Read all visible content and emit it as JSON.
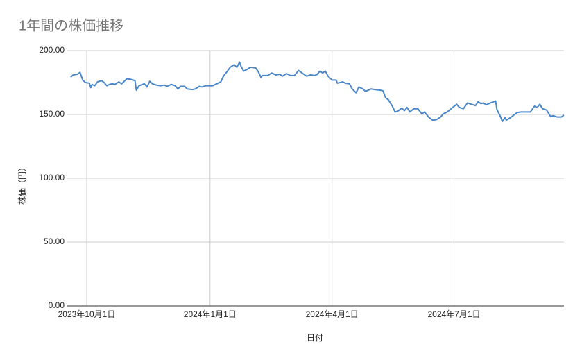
{
  "chart_data": {
    "type": "line",
    "title": "1年間の株価推移",
    "x_label": "日付",
    "y_label": "株価（円）",
    "x": [
      "2023-09-19",
      "2023-09-21",
      "2023-09-24",
      "2023-09-26",
      "2023-09-28",
      "2023-09-30",
      "2023-10-03",
      "2023-10-04",
      "2023-10-05",
      "2023-10-07",
      "2023-10-09",
      "2023-10-12",
      "2023-10-14",
      "2023-10-16",
      "2023-10-18",
      "2023-10-20",
      "2023-10-22",
      "2023-10-25",
      "2023-10-27",
      "2023-10-31",
      "2023-11-03",
      "2023-11-06",
      "2023-11-07",
      "2023-11-09",
      "2023-11-13",
      "2023-11-15",
      "2023-11-17",
      "2023-11-19",
      "2023-11-22",
      "2023-11-25",
      "2023-11-28",
      "2023-11-30",
      "2023-12-03",
      "2023-12-06",
      "2023-12-08",
      "2023-12-10",
      "2023-12-13",
      "2023-12-15",
      "2023-12-19",
      "2023-12-21",
      "2023-12-24",
      "2023-12-26",
      "2023-12-29",
      "2024-01-03",
      "2024-01-06",
      "2024-01-09",
      "2024-01-11",
      "2024-01-14",
      "2024-01-16",
      "2024-01-19",
      "2024-01-21",
      "2024-01-23",
      "2024-01-24",
      "2024-01-26",
      "2024-01-29",
      "2024-01-31",
      "2024-02-04",
      "2024-02-06",
      "2024-02-08",
      "2024-02-09",
      "2024-02-13",
      "2024-02-16",
      "2024-02-19",
      "2024-02-22",
      "2024-02-24",
      "2024-02-27",
      "2024-03-01",
      "2024-03-04",
      "2024-03-07",
      "2024-03-11",
      "2024-03-13",
      "2024-03-16",
      "2024-03-19",
      "2024-03-21",
      "2024-03-23",
      "2024-03-25",
      "2024-03-27",
      "2024-03-29",
      "2024-04-01",
      "2024-04-04",
      "2024-04-05",
      "2024-04-09",
      "2024-04-11",
      "2024-04-14",
      "2024-04-16",
      "2024-04-19",
      "2024-04-21",
      "2024-04-24",
      "2024-04-26",
      "2024-04-30",
      "2024-05-03",
      "2024-05-07",
      "2024-05-09",
      "2024-05-11",
      "2024-05-13",
      "2024-05-16",
      "2024-05-18",
      "2024-05-20",
      "2024-05-23",
      "2024-05-25",
      "2024-05-27",
      "2024-05-29",
      "2024-06-01",
      "2024-06-04",
      "2024-06-07",
      "2024-06-09",
      "2024-06-12",
      "2024-06-15",
      "2024-06-18",
      "2024-06-21",
      "2024-06-23",
      "2024-06-26",
      "2024-06-30",
      "2024-07-03",
      "2024-07-05",
      "2024-07-08",
      "2024-07-11",
      "2024-07-14",
      "2024-07-17",
      "2024-07-19",
      "2024-07-21",
      "2024-07-23",
      "2024-07-25",
      "2024-07-28",
      "2024-08-01",
      "2024-08-02",
      "2024-08-05",
      "2024-08-06",
      "2024-08-08",
      "2024-08-09",
      "2024-08-12",
      "2024-08-14",
      "2024-08-17",
      "2024-08-20",
      "2024-08-23",
      "2024-08-27",
      "2024-08-30",
      "2024-09-01",
      "2024-09-03",
      "2024-09-05",
      "2024-09-08",
      "2024-09-11",
      "2024-09-13",
      "2024-09-16",
      "2024-09-19",
      "2024-09-21"
    ],
    "series": [
      {
        "name": "株価",
        "color": "#4a86c8",
        "values": [
          179.3,
          181,
          181.5,
          183,
          177,
          175,
          174.5,
          171,
          173.5,
          172.5,
          175.5,
          176.5,
          175,
          172.5,
          173.5,
          174,
          173.5,
          175.5,
          174,
          178,
          177.5,
          176.5,
          169,
          172.5,
          174,
          171.5,
          176,
          174,
          173,
          172.5,
          173,
          172,
          173.5,
          172.5,
          170,
          172,
          172,
          170,
          169.5,
          170,
          172,
          171.5,
          172.5,
          172.5,
          174,
          175.5,
          180,
          184,
          187,
          189,
          187,
          191,
          188,
          184,
          185.5,
          187,
          186.5,
          183.5,
          179,
          180.5,
          180.5,
          182.5,
          181,
          181.5,
          180,
          182,
          180.5,
          180.5,
          184.5,
          181.5,
          180,
          181,
          180.5,
          181.5,
          184,
          182.5,
          184,
          180,
          177,
          177,
          174.5,
          175.5,
          174.5,
          174,
          170,
          167,
          171.5,
          170,
          168,
          170,
          169.5,
          169,
          168.5,
          163,
          161.5,
          156.5,
          152,
          152.5,
          155,
          153,
          155.5,
          152,
          154.5,
          154.5,
          150.5,
          152,
          148,
          145.5,
          146,
          148,
          150.5,
          152,
          155.5,
          158,
          155.5,
          154.5,
          159,
          158,
          157,
          160,
          158.5,
          159,
          157.5,
          159,
          160.5,
          154,
          147.5,
          144.5,
          147.5,
          145.5,
          147.5,
          149,
          151.5,
          152,
          152,
          152,
          156.5,
          155.5,
          158,
          154.5,
          153.5,
          148.5,
          149,
          148,
          148,
          149.5
        ]
      }
    ],
    "xlim": [
      "2023-09-16",
      "2024-09-21"
    ],
    "xticks": [
      {
        "value": "2023-10-01",
        "label": "2023年10月1日"
      },
      {
        "value": "2024-01-01",
        "label": "2024年1月1日"
      },
      {
        "value": "2024-04-01",
        "label": "2024年4月1日"
      },
      {
        "value": "2024-07-01",
        "label": "2024年7月1日"
      }
    ],
    "ylim": [
      0,
      200
    ],
    "yticks": [
      {
        "value": 0,
        "label": "0.00"
      },
      {
        "value": 50,
        "label": "50.00"
      },
      {
        "value": 100,
        "label": "100.00"
      },
      {
        "value": 150,
        "label": "150.00"
      },
      {
        "value": 200,
        "label": "200.00"
      }
    ],
    "grid": true
  }
}
